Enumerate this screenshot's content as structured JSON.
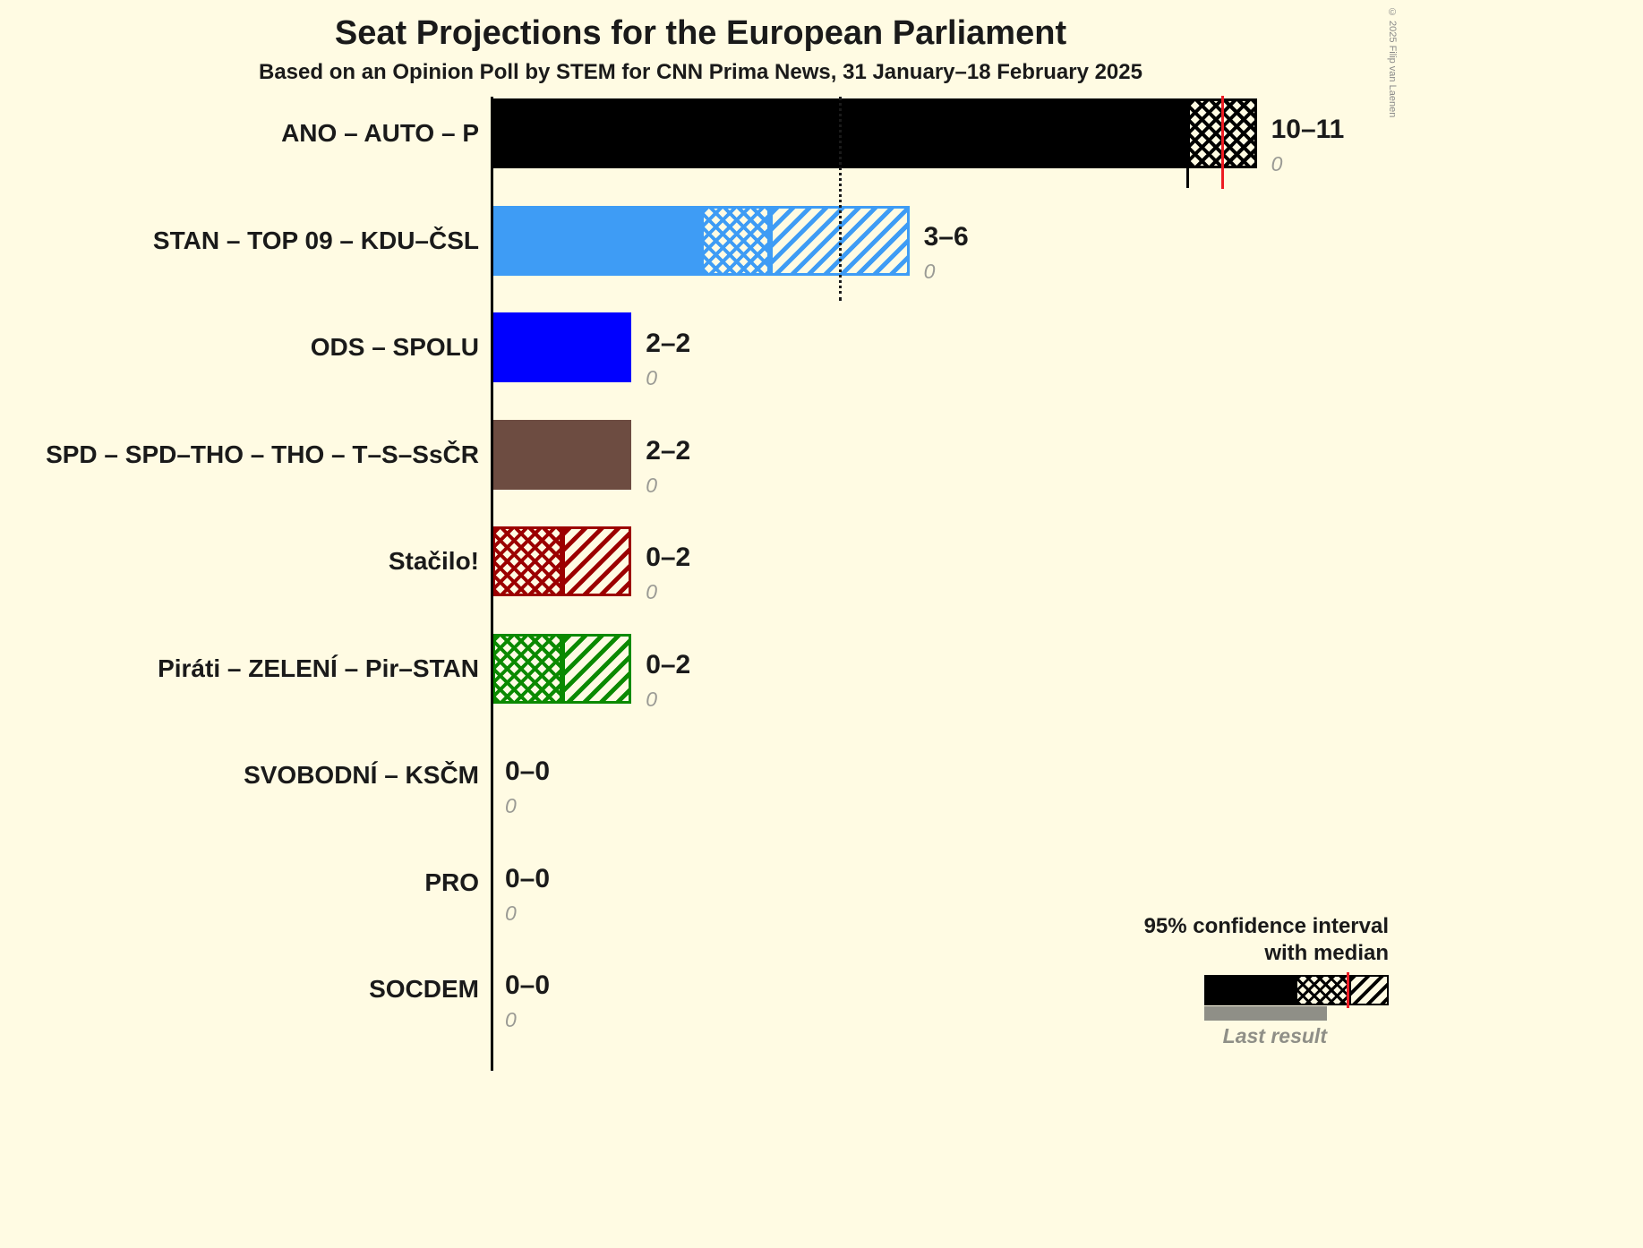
{
  "page": {
    "copyright": "© 2025 Filip van Laenen",
    "background_color": "#FFFBE3"
  },
  "legend": {
    "line1": "95% confidence interval",
    "line2": "with median",
    "last_result_label": "Last result",
    "confidence_bar_color": "#000000",
    "median_line_color": "#ED1C24",
    "last_result_bar_color": "#8F8F87"
  },
  "chart_data": {
    "type": "bar",
    "orientation": "horizontal",
    "title": "Seat Projections for the European Parliament",
    "subtitle": "Based on an Opinion Poll by STEM for CNN Prima News, 31 January–18 February 2025",
    "unit": "seats",
    "xlim": [
      0,
      11.5
    ],
    "reference_line_seats": 5,
    "legend_note": "Bars show 95% confidence interval of seats: solid = lower bound, crosshatch then diagonal hatch = interval up to upper bound; red line = median; gray = last result",
    "parties": [
      {
        "name": "ANO – AUTO – P",
        "ci_label": "10–11",
        "last_result": "0",
        "color": "#000000",
        "ci_low": 10,
        "ci_high": 11,
        "solid_to": 10,
        "crosshatch_to": 11,
        "diagonal_to": 11,
        "median_line": 10.5,
        "tick": 10
      },
      {
        "name": "STAN – TOP 09 – KDU–ČSL",
        "ci_label": "3–6",
        "last_result": "0",
        "color": "#3E9CF5",
        "ci_low": 3,
        "ci_high": 6,
        "solid_to": 3,
        "crosshatch_to": 4,
        "diagonal_to": 6
      },
      {
        "name": "ODS – SPOLU",
        "ci_label": "2–2",
        "last_result": "0",
        "color": "#0000FF",
        "ci_low": 2,
        "ci_high": 2,
        "solid_to": 2,
        "crosshatch_to": 2,
        "diagonal_to": 2
      },
      {
        "name": "SPD – SPD–THO – THO – T–S–SsČR",
        "ci_label": "2–2",
        "last_result": "0",
        "color": "#6D4C41",
        "ci_low": 2,
        "ci_high": 2,
        "solid_to": 2,
        "crosshatch_to": 2,
        "diagonal_to": 2
      },
      {
        "name": "Stačilo!",
        "ci_label": "0–2",
        "last_result": "0",
        "color": "#9C0000",
        "ci_low": 0,
        "ci_high": 2,
        "solid_to": 0,
        "crosshatch_to": 1,
        "diagonal_to": 2
      },
      {
        "name": "Piráti – ZELENÍ – Pir–STAN",
        "ci_label": "0–2",
        "last_result": "0",
        "color": "#0B8A00",
        "ci_low": 0,
        "ci_high": 2,
        "solid_to": 0,
        "crosshatch_to": 1,
        "diagonal_to": 2
      },
      {
        "name": "SVOBODNÍ – KSČM",
        "ci_label": "0–0",
        "last_result": "0",
        "color": "#000000",
        "ci_low": 0,
        "ci_high": 0,
        "solid_to": 0,
        "crosshatch_to": 0,
        "diagonal_to": 0
      },
      {
        "name": "PRO",
        "ci_label": "0–0",
        "last_result": "0",
        "color": "#000000",
        "ci_low": 0,
        "ci_high": 0,
        "solid_to": 0,
        "crosshatch_to": 0,
        "diagonal_to": 0
      },
      {
        "name": "SOCDEM",
        "ci_label": "0–0",
        "last_result": "0",
        "color": "#000000",
        "ci_low": 0,
        "ci_high": 0,
        "solid_to": 0,
        "crosshatch_to": 0,
        "diagonal_to": 0
      }
    ]
  }
}
